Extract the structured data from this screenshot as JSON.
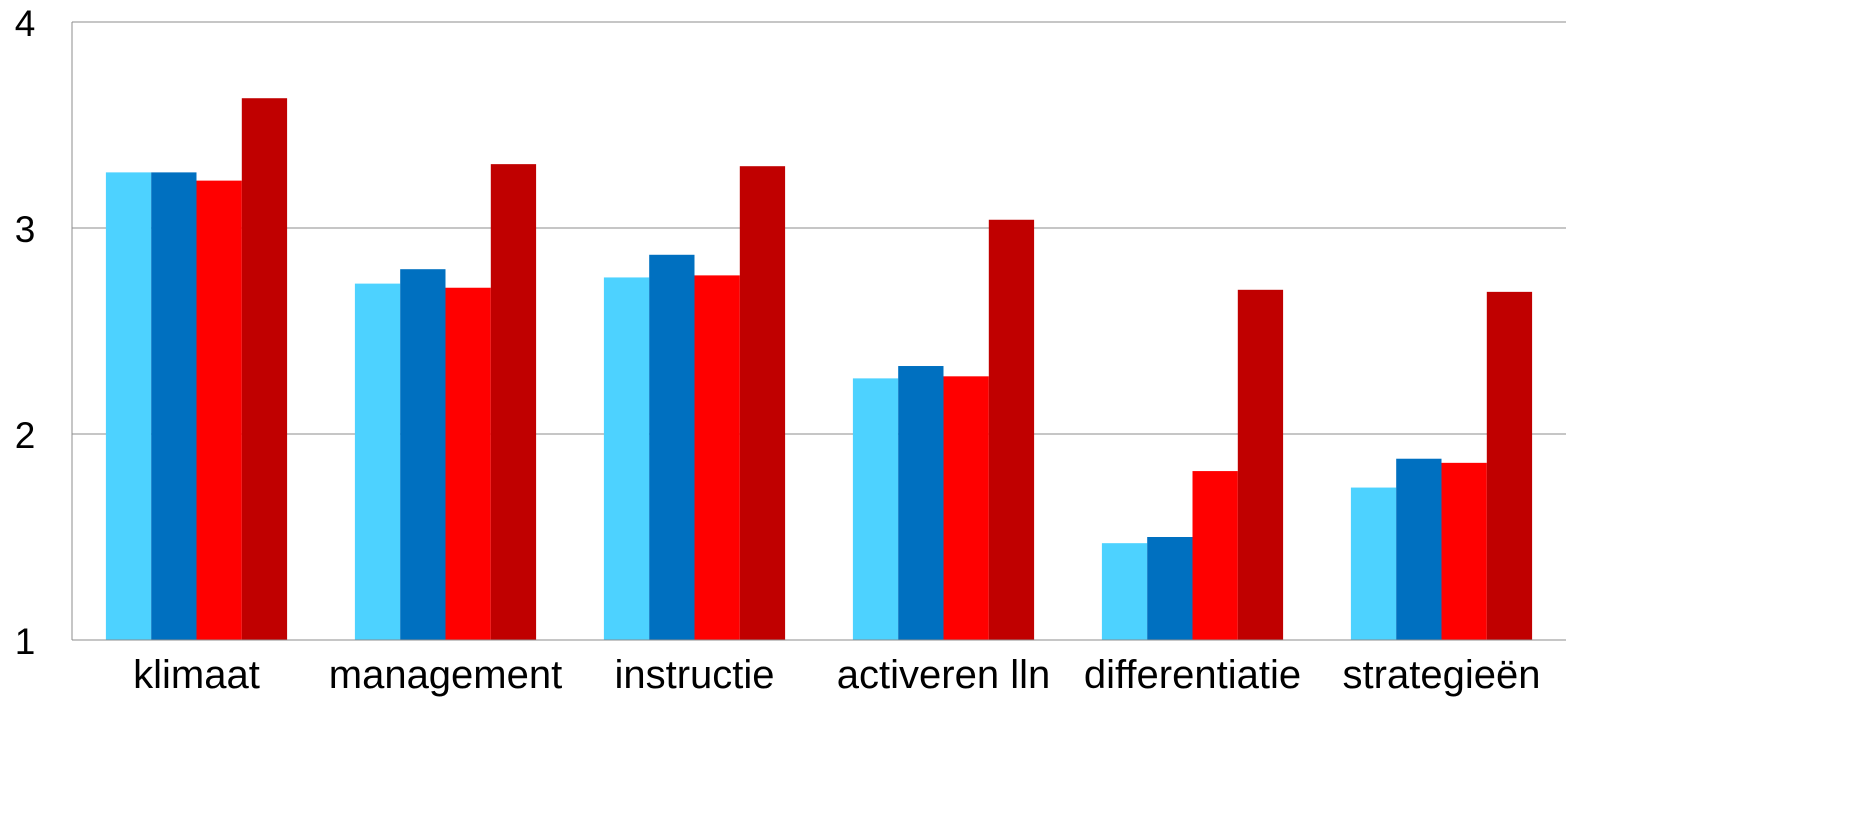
{
  "chart_data": {
    "type": "bar",
    "categories": [
      "klimaat",
      "management",
      "instructie",
      "activeren lln",
      "differentiatie",
      "strategieën"
    ],
    "series": [
      {
        "color": "#4dd2ff",
        "values": [
          3.27,
          2.73,
          2.76,
          2.27,
          1.47,
          1.74
        ]
      },
      {
        "color": "#0070c0",
        "values": [
          3.27,
          2.8,
          2.87,
          2.33,
          1.5,
          1.88
        ]
      },
      {
        "color": "#ff0000",
        "values": [
          3.23,
          2.71,
          2.77,
          2.28,
          1.82,
          1.86
        ]
      },
      {
        "color": "#c00000",
        "values": [
          3.63,
          3.31,
          3.3,
          3.04,
          2.7,
          2.69
        ]
      }
    ],
    "ylim": [
      1,
      4
    ],
    "yticks": [
      "1",
      "2",
      "3",
      "4"
    ],
    "grid": true,
    "legend": "none"
  }
}
